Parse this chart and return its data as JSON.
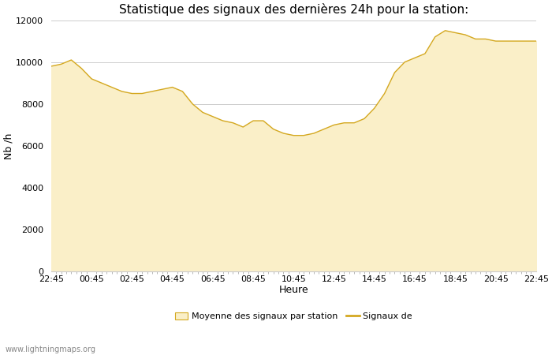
{
  "title": "Statistique des signaux des dernières 24h pour la station:",
  "xlabel": "Heure",
  "ylabel": "Nb /h",
  "ylim": [
    0,
    12000
  ],
  "yticks": [
    0,
    2000,
    4000,
    6000,
    8000,
    10000,
    12000
  ],
  "xtick_labels": [
    "22:45",
    "00:45",
    "02:45",
    "04:45",
    "06:45",
    "08:45",
    "10:45",
    "12:45",
    "14:45",
    "16:45",
    "18:45",
    "20:45",
    "22:45"
  ],
  "fill_color": "#faefc8",
  "line_color": "#d4a820",
  "watermark": "www.lightningmaps.org",
  "legend_label1": "Moyenne des signaux par station",
  "legend_label2": "Signaux de",
  "x_values": [
    0,
    0.5,
    1.0,
    1.5,
    2.0,
    2.5,
    3.0,
    3.5,
    4.0,
    4.5,
    5.0,
    5.5,
    6.0,
    6.5,
    7.0,
    7.5,
    8.0,
    8.5,
    9.0,
    9.5,
    10.0,
    10.5,
    11.0,
    11.5,
    12.0,
    12.5,
    13.0,
    13.5,
    14.0,
    14.5,
    15.0,
    15.5,
    16.0,
    16.5,
    17.0,
    17.5,
    18.0,
    18.5,
    19.0,
    19.5,
    20.0,
    20.5,
    21.0,
    21.5,
    22.0,
    22.5,
    23.0,
    23.5,
    24.0
  ],
  "y_values": [
    9800,
    9900,
    10100,
    9700,
    9200,
    9000,
    8800,
    8600,
    8500,
    8500,
    8600,
    8700,
    8800,
    8600,
    8000,
    7600,
    7400,
    7200,
    7100,
    6900,
    7200,
    7200,
    6800,
    6600,
    6500,
    6500,
    6600,
    6800,
    7000,
    7100,
    7100,
    7300,
    7800,
    8500,
    9500,
    10000,
    10200,
    10400,
    11200,
    11500,
    11400,
    11300,
    11100,
    11100,
    11000,
    11000,
    11000,
    11000,
    11000
  ]
}
